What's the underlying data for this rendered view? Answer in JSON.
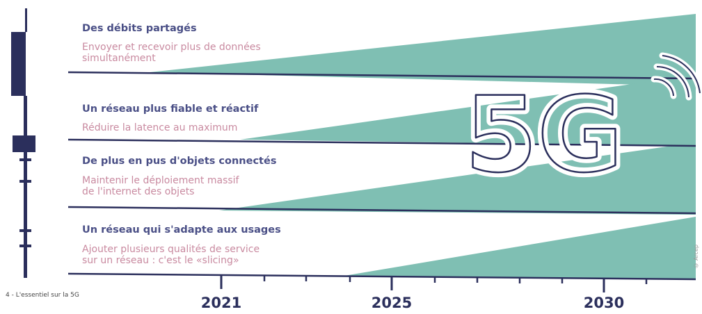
{
  "rows": [
    {
      "title": "Des débits partagés",
      "desc1": "Envoyer et recevoir plus de données",
      "desc2": "simultanément"
    },
    {
      "title": "Un réseau plus fiable et réactif",
      "desc1": "Réduire la latence au maximum"
    },
    {
      "title": "De plus en pus d'objets connectés",
      "desc1": "Maintenir le déploiement massif",
      "desc2": "de l'internet des objets"
    },
    {
      "title": "Un réseau qui s'adapte aux usages",
      "desc1": "Ajouter plusieurs qualités de service",
      "desc2": "sur un réseau : c'est le «slicing»"
    }
  ],
  "timeline": {
    "years": [
      "2021",
      "2025",
      "2030"
    ]
  },
  "logo_text": "5G",
  "footer": "4 - L'essentiel sur la 5G",
  "credit": "© Arcep",
  "colors": {
    "teal": "#7fbfb3",
    "navy": "#2b2f5c",
    "title": "#4a4f86",
    "desc": "#c98aa0"
  }
}
